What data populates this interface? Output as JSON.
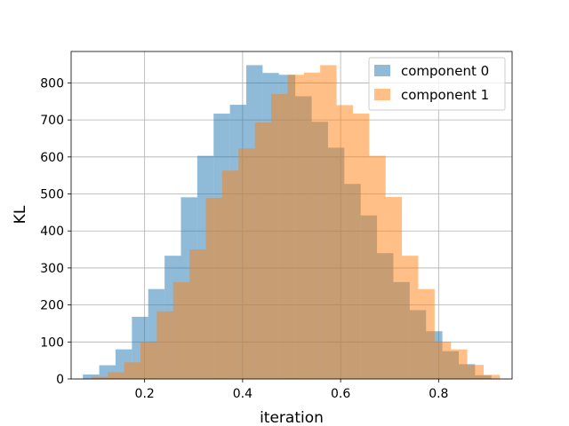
{
  "chart_data": {
    "type": "bar",
    "subtype": "histogram",
    "title": "",
    "xlabel": "iteration",
    "ylabel": "KL",
    "xlim": [
      0.05,
      0.95
    ],
    "ylim": [
      0,
      885
    ],
    "xticks": [
      0.2,
      0.4,
      0.6,
      0.8
    ],
    "xtick_labels": [
      "0.2",
      "0.4",
      "0.6",
      "0.8"
    ],
    "yticks": [
      0,
      100,
      200,
      300,
      400,
      500,
      600,
      700,
      800
    ],
    "ytick_labels": [
      "0",
      "100",
      "200",
      "300",
      "400",
      "500",
      "600",
      "700",
      "800"
    ],
    "grid": true,
    "legend_position": "upper right",
    "bar_alpha": 0.5,
    "series": [
      {
        "name": "component 0",
        "color": "#1f77b4",
        "bin_start": 0.074,
        "bin_width": 0.03335,
        "values": [
          12,
          37,
          80,
          168,
          243,
          333,
          491,
          603,
          717,
          741,
          848,
          827,
          822,
          764,
          695,
          625,
          527,
          442,
          340,
          262,
          186,
          129,
          75,
          40,
          10
        ]
      },
      {
        "name": "component 1",
        "color": "#ff7f0e",
        "bin_start": 0.0915,
        "bin_width": 0.03335,
        "values": [
          6,
          18,
          45,
          100,
          183,
          262,
          350,
          490,
          563,
          623,
          693,
          770,
          822,
          828,
          848,
          740,
          717,
          603,
          492,
          333,
          243,
          101,
          80,
          38,
          11
        ]
      }
    ]
  }
}
